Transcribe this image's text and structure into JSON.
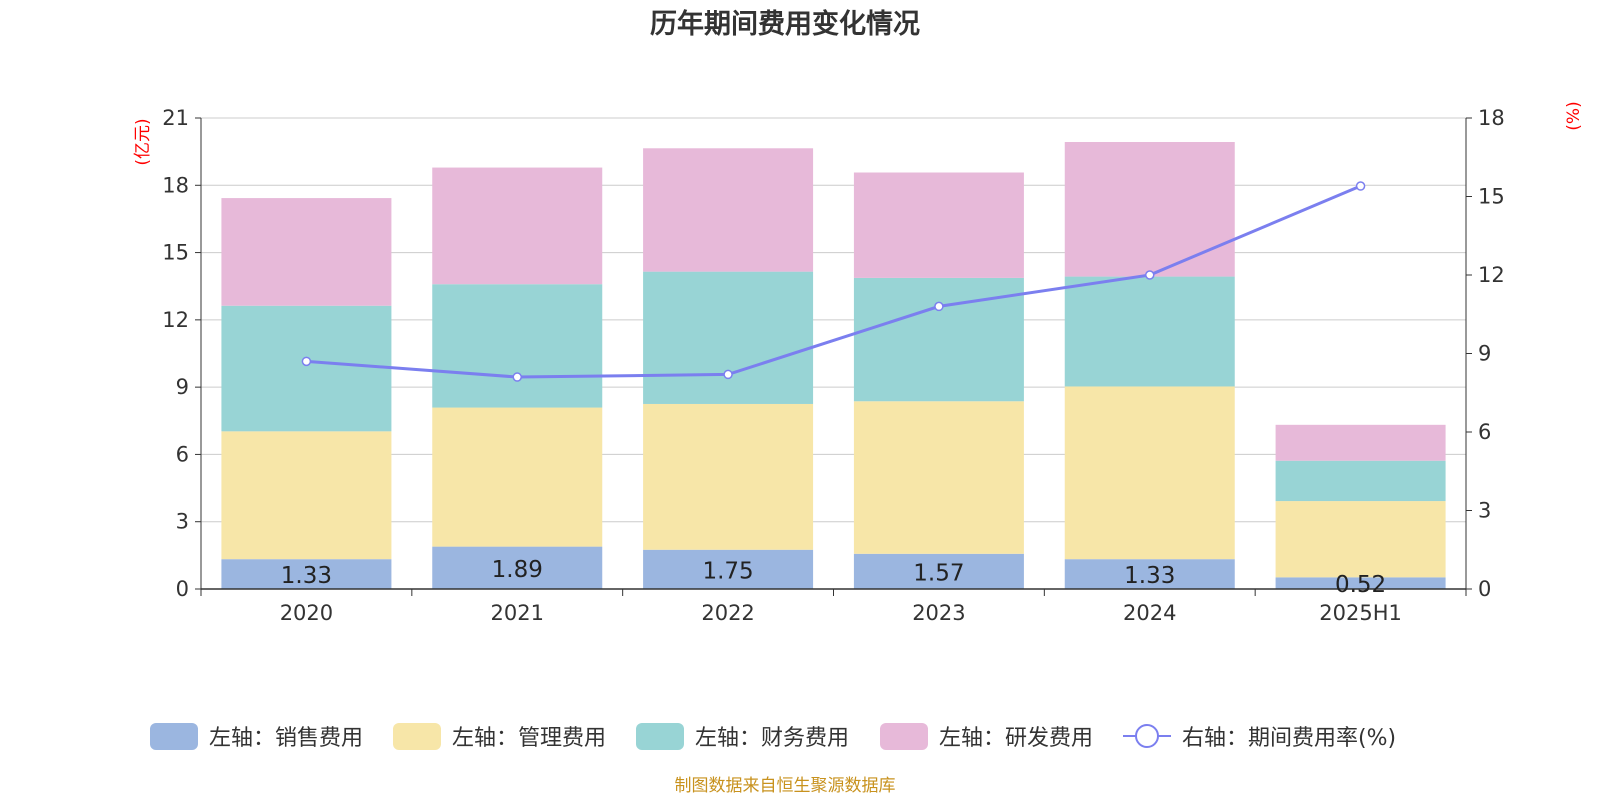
{
  "title": "历年期间费用变化情况",
  "source": "制图数据来自恒生聚源数据库",
  "chart_data": {
    "type": "bar",
    "stacked": true,
    "categories": [
      "2020",
      "2021",
      "2022",
      "2023",
      "2024",
      "2025H1"
    ],
    "series": [
      {
        "name": "左轴：销售费用",
        "axis": "left",
        "color": "#9bb6e0",
        "values": [
          1.33,
          1.89,
          1.75,
          1.57,
          1.33,
          0.52
        ],
        "labels": [
          "1.33",
          "1.89",
          "1.75",
          "1.57",
          "1.33",
          "0.52"
        ]
      },
      {
        "name": "左轴：管理费用",
        "axis": "left",
        "color": "#f7e6a8",
        "values": [
          5.7,
          6.2,
          6.5,
          6.8,
          7.7,
          3.4
        ]
      },
      {
        "name": "左轴：财务费用",
        "axis": "left",
        "color": "#98d4d5",
        "values": [
          5.6,
          5.5,
          5.9,
          5.5,
          4.9,
          1.8
        ]
      },
      {
        "name": "左轴：研发费用",
        "axis": "left",
        "color": "#e7b9d9",
        "values": [
          4.8,
          5.2,
          5.5,
          4.7,
          6.0,
          1.6
        ]
      }
    ],
    "line": {
      "name": "右轴：期间费用率(%)",
      "axis": "right",
      "type": "line",
      "color": "#7b7fef",
      "values": [
        8.7,
        8.1,
        8.2,
        10.8,
        12.0,
        15.4
      ]
    },
    "y_left": {
      "unit": "(亿元)",
      "ylim": [
        0,
        21
      ],
      "ticks": [
        0,
        3,
        6,
        9,
        12,
        15,
        18,
        21
      ]
    },
    "y_right": {
      "unit": "(%)",
      "ylim": [
        0,
        18
      ],
      "ticks": [
        0,
        3,
        6,
        9,
        12,
        15,
        18
      ]
    },
    "grid": true,
    "legend_position": "bottom"
  }
}
